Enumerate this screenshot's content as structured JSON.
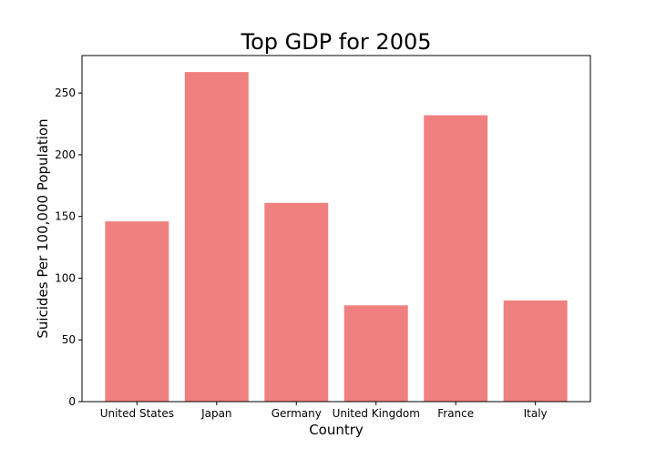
{
  "chart_data": {
    "type": "bar",
    "title": "Top GDP for 2005",
    "xlabel": "Country",
    "ylabel": "Suicides Per 100,000 Population",
    "categories": [
      "United States",
      "Japan",
      "Germany",
      "United Kingdom",
      "France",
      "Italy"
    ],
    "values": [
      146,
      267,
      161,
      78,
      232,
      82
    ],
    "ylim": [
      0,
      280.35
    ],
    "yticks": [
      0,
      50,
      100,
      150,
      200,
      250
    ],
    "bar_color": "#f08080",
    "grid": false,
    "legend": "none"
  }
}
